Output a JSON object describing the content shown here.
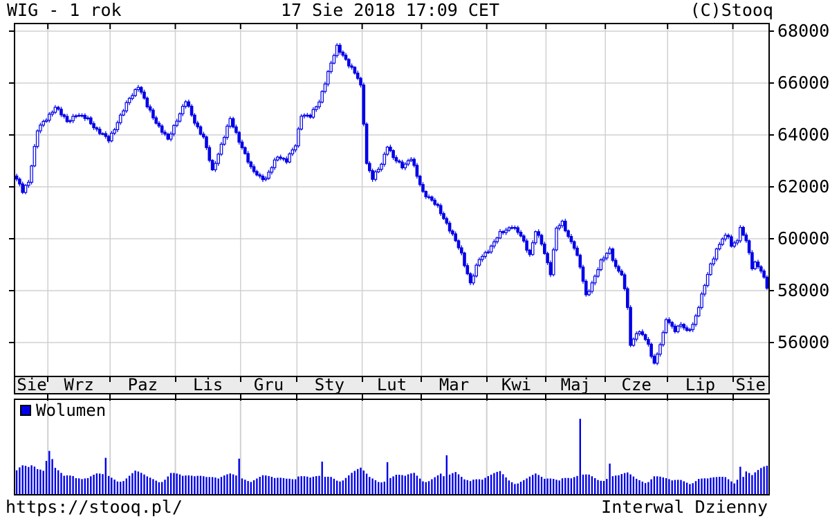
{
  "chart_data": {
    "type": "candlestick_with_volume",
    "title": "WIG - 1 rok",
    "timestamp": "17 Sie 2018 17:09 CET",
    "copyright": "(C)Stooq",
    "source_url": "https://stooq.pl/",
    "interval_label": "Interwal Dzienny",
    "volume_legend": "Wolumen",
    "y_ticks": [
      68000,
      66000,
      64000,
      62000,
      60000,
      58000,
      56000
    ],
    "price_axis": {
      "top": 68267,
      "bottom": 54720
    },
    "grid": true,
    "legend_position": "volume-panel-top-left",
    "months": [
      {
        "label": "Sie",
        "days": 11
      },
      {
        "label": "Wrz",
        "days": 21
      },
      {
        "label": "Paz",
        "days": 22
      },
      {
        "label": "Lis",
        "days": 22
      },
      {
        "label": "Gru",
        "days": 19
      },
      {
        "label": "Sty",
        "days": 22
      },
      {
        "label": "Lut",
        "days": 20
      },
      {
        "label": "Mar",
        "days": 22
      },
      {
        "label": "Kwi",
        "days": 20
      },
      {
        "label": "Maj",
        "days": 20
      },
      {
        "label": "Cze",
        "days": 21
      },
      {
        "label": "Lip",
        "days": 22
      },
      {
        "label": "Sie",
        "days": 12
      }
    ],
    "total_days": 254,
    "close_anchors": [
      [
        0,
        62300
      ],
      [
        2,
        61800
      ],
      [
        4,
        62200
      ],
      [
        7,
        64200
      ],
      [
        10,
        64600
      ],
      [
        13,
        65100
      ],
      [
        17,
        64500
      ],
      [
        20,
        64800
      ],
      [
        24,
        64600
      ],
      [
        27,
        64200
      ],
      [
        31,
        63800
      ],
      [
        34,
        64500
      ],
      [
        38,
        65400
      ],
      [
        41,
        65900
      ],
      [
        44,
        65100
      ],
      [
        47,
        64500
      ],
      [
        51,
        63800
      ],
      [
        54,
        64600
      ],
      [
        57,
        65300
      ],
      [
        60,
        64500
      ],
      [
        63,
        63900
      ],
      [
        66,
        62600
      ],
      [
        68,
        63300
      ],
      [
        72,
        64600
      ],
      [
        75,
        63800
      ],
      [
        79,
        62700
      ],
      [
        82,
        62400
      ],
      [
        84,
        62300
      ],
      [
        88,
        63200
      ],
      [
        91,
        63000
      ],
      [
        94,
        63600
      ],
      [
        96,
        64800
      ],
      [
        99,
        64700
      ],
      [
        102,
        65300
      ],
      [
        105,
        66400
      ],
      [
        108,
        67400
      ],
      [
        110,
        67100
      ],
      [
        112,
        66700
      ],
      [
        115,
        66200
      ],
      [
        116,
        65900
      ],
      [
        117,
        64500
      ],
      [
        118,
        62900
      ],
      [
        120,
        62300
      ],
      [
        123,
        62900
      ],
      [
        125,
        63600
      ],
      [
        127,
        63100
      ],
      [
        130,
        62800
      ],
      [
        133,
        63100
      ],
      [
        135,
        62400
      ],
      [
        137,
        61800
      ],
      [
        139,
        61600
      ],
      [
        142,
        61200
      ],
      [
        145,
        60600
      ],
      [
        148,
        59900
      ],
      [
        150,
        59400
      ],
      [
        153,
        58300
      ],
      [
        156,
        59200
      ],
      [
        160,
        59700
      ],
      [
        163,
        60200
      ],
      [
        167,
        60500
      ],
      [
        170,
        60100
      ],
      [
        173,
        59400
      ],
      [
        175,
        60300
      ],
      [
        177,
        59800
      ],
      [
        180,
        58700
      ],
      [
        182,
        60400
      ],
      [
        184,
        60600
      ],
      [
        186,
        60100
      ],
      [
        188,
        59700
      ],
      [
        190,
        58900
      ],
      [
        192,
        57800
      ],
      [
        194,
        58300
      ],
      [
        197,
        59100
      ],
      [
        200,
        59600
      ],
      [
        202,
        58900
      ],
      [
        204,
        58600
      ],
      [
        206,
        57400
      ],
      [
        207,
        55900
      ],
      [
        209,
        56400
      ],
      [
        211,
        56300
      ],
      [
        213,
        55900
      ],
      [
        215,
        55200
      ],
      [
        218,
        56300
      ],
      [
        219,
        56900
      ],
      [
        222,
        56500
      ],
      [
        224,
        56700
      ],
      [
        226,
        56400
      ],
      [
        228,
        56700
      ],
      [
        230,
        57400
      ],
      [
        232,
        58200
      ],
      [
        234,
        59000
      ],
      [
        236,
        59600
      ],
      [
        238,
        60000
      ],
      [
        240,
        60100
      ],
      [
        241,
        59700
      ],
      [
        243,
        60000
      ],
      [
        244,
        60400
      ],
      [
        246,
        59900
      ],
      [
        248,
        58900
      ],
      [
        249,
        59100
      ],
      [
        251,
        58800
      ],
      [
        253,
        58100
      ]
    ],
    "volume_anchors": [
      [
        0,
        0.22
      ],
      [
        2,
        0.3
      ],
      [
        4,
        0.34
      ],
      [
        5,
        0.38
      ],
      [
        7,
        0.27
      ],
      [
        9,
        0.22
      ],
      [
        11,
        0.38
      ],
      [
        13,
        0.23
      ],
      [
        16,
        0.18
      ],
      [
        19,
        0.23
      ],
      [
        22,
        0.16
      ],
      [
        24,
        0.15
      ],
      [
        27,
        0.18
      ],
      [
        29,
        0.18
      ],
      [
        30,
        0.34
      ],
      [
        31,
        0.18
      ],
      [
        33,
        0.17
      ],
      [
        36,
        0.15
      ],
      [
        40,
        0.21
      ],
      [
        44,
        0.16
      ],
      [
        48,
        0.14
      ],
      [
        52,
        0.22
      ],
      [
        56,
        0.16
      ],
      [
        60,
        0.17
      ],
      [
        64,
        0.23
      ],
      [
        68,
        0.15
      ],
      [
        72,
        0.18
      ],
      [
        74,
        0.17
      ],
      [
        75,
        0.34
      ],
      [
        76,
        0.16
      ],
      [
        78,
        0.16
      ],
      [
        83,
        0.18
      ],
      [
        87,
        0.14
      ],
      [
        91,
        0.16
      ],
      [
        95,
        0.21
      ],
      [
        99,
        0.15
      ],
      [
        102,
        0.16
      ],
      [
        103,
        0.29
      ],
      [
        104,
        0.16
      ],
      [
        106,
        0.18
      ],
      [
        110,
        0.16
      ],
      [
        113,
        0.2
      ],
      [
        116,
        0.23
      ],
      [
        119,
        0.16
      ],
      [
        122,
        0.14
      ],
      [
        124,
        0.16
      ],
      [
        125,
        0.37
      ],
      [
        126,
        0.17
      ],
      [
        128,
        0.18
      ],
      [
        131,
        0.16
      ],
      [
        134,
        0.2
      ],
      [
        137,
        0.15
      ],
      [
        140,
        0.17
      ],
      [
        143,
        0.19
      ],
      [
        144,
        0.16
      ],
      [
        145,
        0.34
      ],
      [
        146,
        0.17
      ],
      [
        148,
        0.2
      ],
      [
        151,
        0.16
      ],
      [
        154,
        0.18
      ],
      [
        157,
        0.14
      ],
      [
        160,
        0.17
      ],
      [
        163,
        0.21
      ],
      [
        166,
        0.15
      ],
      [
        169,
        0.13
      ],
      [
        172,
        0.15
      ],
      [
        175,
        0.18
      ],
      [
        178,
        0.14
      ],
      [
        181,
        0.17
      ],
      [
        184,
        0.19
      ],
      [
        187,
        0.15
      ],
      [
        189,
        0.16
      ],
      [
        190,
        0.8
      ],
      [
        191,
        0.17
      ],
      [
        193,
        0.18
      ],
      [
        196,
        0.16
      ],
      [
        199,
        0.18
      ],
      [
        200,
        0.33
      ],
      [
        201,
        0.18
      ],
      [
        203,
        0.17
      ],
      [
        206,
        0.19
      ],
      [
        209,
        0.15
      ],
      [
        212,
        0.14
      ],
      [
        215,
        0.19
      ],
      [
        218,
        0.15
      ],
      [
        221,
        0.12
      ],
      [
        224,
        0.14
      ],
      [
        227,
        0.13
      ],
      [
        230,
        0.16
      ],
      [
        233,
        0.14
      ],
      [
        236,
        0.15
      ],
      [
        239,
        0.17
      ],
      [
        242,
        0.14
      ],
      [
        243,
        0.18
      ],
      [
        244,
        0.31
      ],
      [
        245,
        0.18
      ],
      [
        246,
        0.22
      ],
      [
        248,
        0.17
      ],
      [
        250,
        0.21
      ],
      [
        252,
        0.25
      ],
      [
        253,
        0.27
      ]
    ],
    "colors": {
      "candle": "#0000e8",
      "candle_up_fill": "#ffffff",
      "volume_bar": "#0000e8",
      "grid": "#d0d0d0",
      "band_bg": "#ebebeb",
      "border": "#000000"
    }
  }
}
